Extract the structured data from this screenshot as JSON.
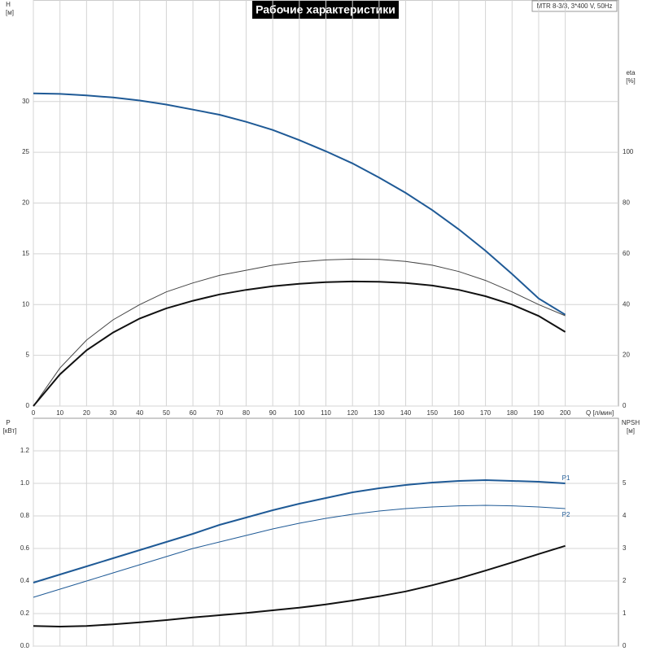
{
  "chart_data": [
    {
      "type": "line",
      "title": "Рабочие характеристики",
      "subtitle": "MTR 8-3/3, 3*400 V, 50Hz",
      "ylabel": "H",
      "yunit": "[м]",
      "y2label": "eta",
      "y2unit": "[%]",
      "xlabel": "Q [л/мин]",
      "xlim": [
        0,
        220
      ],
      "xticks": [
        0,
        10,
        20,
        30,
        40,
        50,
        60,
        70,
        80,
        90,
        100,
        110,
        120,
        130,
        140,
        150,
        160,
        170,
        180,
        190,
        200
      ],
      "xtick_labels": true,
      "ylim": [
        0,
        40
      ],
      "yticks": [
        0,
        5,
        10,
        15,
        20,
        25,
        30
      ],
      "y2lim": [
        0,
        160
      ],
      "y2ticks": [
        0,
        20,
        40,
        60,
        80,
        100
      ],
      "grid": true,
      "x": [
        0,
        10,
        20,
        30,
        40,
        50,
        60,
        70,
        80,
        90,
        100,
        110,
        120,
        130,
        140,
        150,
        160,
        170,
        180,
        190,
        200
      ],
      "series": [
        {
          "color": "#1f5a96",
          "width": 2,
          "values": [
            30.8,
            30.75,
            30.6,
            30.4,
            30.1,
            29.7,
            29.2,
            28.7,
            28.0,
            27.2,
            26.2,
            25.1,
            23.9,
            22.5,
            21.0,
            19.3,
            17.4,
            15.3,
            13.0,
            10.6,
            9.0
          ]
        },
        {
          "color": "#444444",
          "width": 1,
          "axis": "y2",
          "values": [
            0,
            15,
            26,
            34,
            40,
            45,
            48.5,
            51.5,
            53.5,
            55.5,
            56.8,
            57.6,
            57.9,
            57.8,
            57,
            55.5,
            53,
            49.5,
            45,
            40,
            35.6
          ]
        },
        {
          "color": "#111111",
          "width": 2,
          "axis": "y2",
          "values": [
            0,
            12.5,
            22,
            29,
            34.5,
            38.5,
            41.5,
            44,
            45.8,
            47.2,
            48.2,
            48.8,
            49.1,
            49,
            48.5,
            47.5,
            45.8,
            43.3,
            40,
            35.5,
            29.2
          ]
        }
      ]
    },
    {
      "type": "line",
      "ylabel": "P",
      "yunit": "[кВт]",
      "y2label": "NPSH",
      "y2unit": "[м]",
      "xlim": [
        0,
        220
      ],
      "xticks": [
        0,
        10,
        20,
        30,
        40,
        50,
        60,
        70,
        80,
        90,
        100,
        110,
        120,
        130,
        140,
        150,
        160,
        170,
        180,
        190,
        200
      ],
      "xtick_labels": false,
      "ylim": [
        0,
        1.4
      ],
      "yticks": [
        {
          "value": 0,
          "label": "0.0"
        },
        0.2,
        0.4,
        0.6,
        0.8,
        {
          "value": 1,
          "label": "1.0"
        },
        1.2
      ],
      "y2lim": [
        0,
        7
      ],
      "y2ticks": [
        0,
        1,
        2,
        3,
        4,
        5
      ],
      "grid": true,
      "x": [
        0,
        10,
        20,
        30,
        40,
        50,
        60,
        70,
        80,
        90,
        100,
        110,
        120,
        130,
        140,
        150,
        160,
        170,
        180,
        190,
        200
      ],
      "series": [
        {
          "name": "P1",
          "color": "#1f5a96",
          "width": 2,
          "values": [
            0.39,
            0.44,
            0.49,
            0.54,
            0.59,
            0.64,
            0.69,
            0.745,
            0.79,
            0.835,
            0.875,
            0.91,
            0.945,
            0.97,
            0.99,
            1.005,
            1.015,
            1.02,
            1.015,
            1.01,
            1.0
          ]
        },
        {
          "name": "P2",
          "color": "#1f5a96",
          "width": 1,
          "values": [
            0.3,
            0.35,
            0.4,
            0.45,
            0.5,
            0.55,
            0.6,
            0.64,
            0.68,
            0.72,
            0.755,
            0.785,
            0.81,
            0.83,
            0.845,
            0.855,
            0.862,
            0.865,
            0.862,
            0.855,
            0.845
          ]
        },
        {
          "color": "#111111",
          "width": 2,
          "axis": "y2",
          "values": [
            0.62,
            0.6,
            0.62,
            0.67,
            0.73,
            0.8,
            0.88,
            0.95,
            1.02,
            1.1,
            1.18,
            1.28,
            1.4,
            1.53,
            1.68,
            1.87,
            2.08,
            2.32,
            2.57,
            2.83,
            3.08
          ]
        }
      ]
    }
  ]
}
